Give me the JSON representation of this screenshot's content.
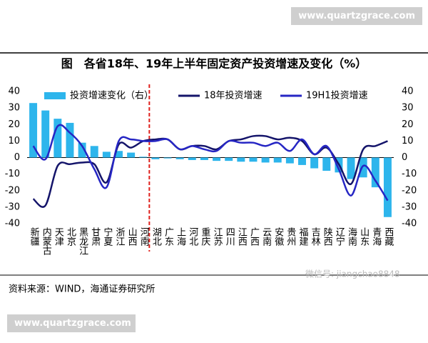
{
  "watermark_top": "www.quartzgrace.com",
  "watermark_bottom": "www.quartzgrace.com",
  "wechat": "微信号: jiangchao8848",
  "source": "资料来源：WIND，海通证券研究所",
  "chart_data": {
    "type": "bar-line",
    "title": "图　各省18年、19年上半年固定资产投资增速及变化（%）",
    "categories": [
      "新疆",
      "内蒙古",
      "天津",
      "北京",
      "黑龙江",
      "甘肃",
      "宁夏",
      "浙江",
      "山西",
      "河南",
      "湖北",
      "广东",
      "上海",
      "河北",
      "重庆",
      "江苏",
      "四川",
      "江西",
      "广西",
      "云南",
      "安徽",
      "贵州",
      "福建",
      "吉林",
      "陕西",
      "辽宁",
      "海南",
      "山东",
      "青海",
      "西藏"
    ],
    "ylim": [
      -40,
      40
    ],
    "yticks": [
      -40,
      -30,
      -20,
      -10,
      0,
      10,
      20,
      30,
      40
    ],
    "y2lim": [
      -40,
      40
    ],
    "y2ticks": [
      -40,
      -30,
      -20,
      -10,
      0,
      10,
      20,
      30,
      40
    ],
    "series": [
      {
        "name": "投资增速变化（右）",
        "kind": "bar",
        "axis": "y2",
        "color": "#2db5ec",
        "values": [
          33,
          28.5,
          23.5,
          21,
          9,
          7,
          3.5,
          4,
          3,
          0.5,
          -1,
          -0.5,
          -1,
          -1.5,
          -1.5,
          -2,
          -2,
          -2.5,
          -2.5,
          -3,
          -3,
          -3.5,
          -4.5,
          -6.5,
          -8,
          -9,
          -13,
          -12,
          -18,
          -36
        ]
      },
      {
        "name": "18年投资增速",
        "kind": "line",
        "color": "#14146a",
        "values": [
          -25,
          -29,
          -5,
          -4,
          -3,
          -4,
          -15,
          8,
          6,
          10,
          11,
          11,
          5,
          7,
          7,
          5,
          10,
          11,
          13,
          13,
          11,
          12,
          10,
          2,
          6,
          -4,
          -16,
          5,
          7,
          10
        ]
      },
      {
        "name": "19H1投资增速",
        "kind": "line",
        "color": "#2626c4",
        "values": [
          7,
          -1,
          19,
          15,
          7,
          -7,
          -18,
          10,
          11,
          10,
          10,
          11,
          5,
          7,
          5,
          4,
          10,
          9,
          9,
          7,
          9,
          4,
          11,
          2,
          7,
          -7,
          -23,
          -5,
          -14,
          -26
        ]
      }
    ]
  }
}
